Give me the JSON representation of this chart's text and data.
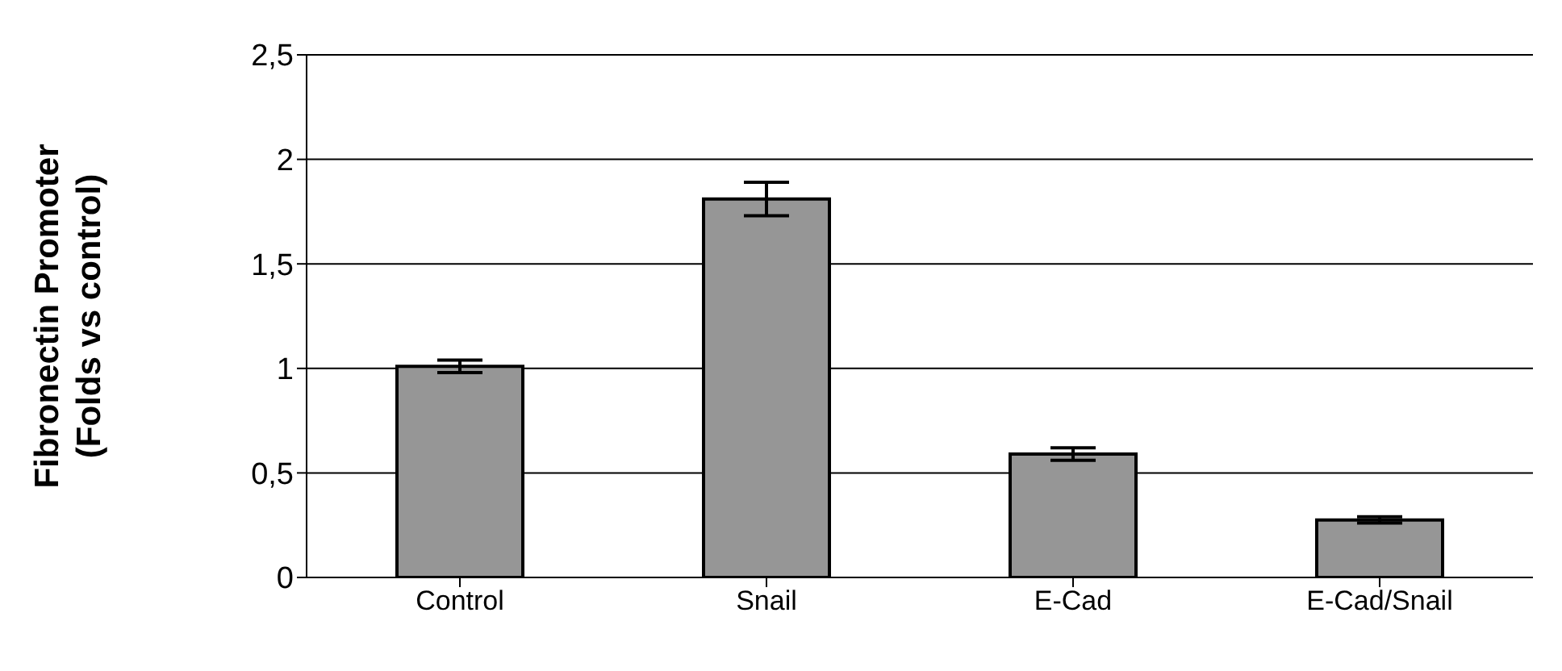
{
  "chart_data": {
    "type": "bar",
    "ylabel": "Fibronectin Promoter\n(Folds vs control)",
    "categories": [
      "Control",
      "Snail",
      "E-Cad",
      "E-Cad/Snail"
    ],
    "values": [
      1.01,
      1.81,
      0.59,
      0.275
    ],
    "errors": [
      0.03,
      0.08,
      0.03,
      0.015
    ],
    "color": "#969696",
    "ylim": [
      0,
      2.5
    ],
    "yticks": [
      0,
      {
        "value": 0.5,
        "label": "0,5"
      },
      1,
      {
        "value": 1.5,
        "label": "1,5"
      },
      2,
      {
        "value": 2.5,
        "label": "2,5"
      }
    ],
    "grid": "y",
    "legend": false
  }
}
